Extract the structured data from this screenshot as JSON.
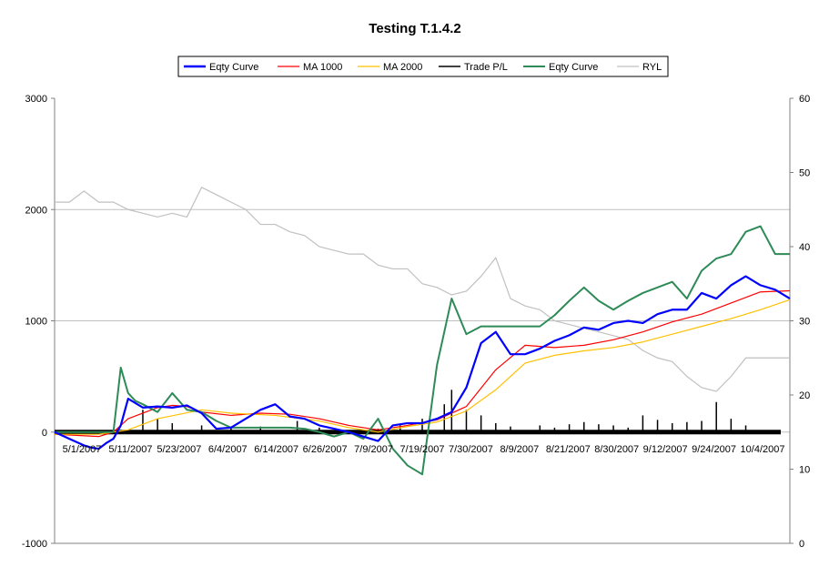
{
  "chart_data": {
    "type": "line",
    "title": "Testing T.1.4.2",
    "y_left": {
      "range": [
        -1000,
        3000
      ],
      "ticks": [
        "-1000",
        "0",
        "1000",
        "2000",
        "3000"
      ]
    },
    "y_right": {
      "range": [
        0,
        60
      ],
      "ticks": [
        "0",
        "10",
        "20",
        "30",
        "40",
        "50",
        "60"
      ]
    },
    "x_tick_labels": [
      "5/1/2007",
      "5/11/2007",
      "5/23/2007",
      "6/4/2007",
      "6/14/2007",
      "6/26/2007",
      "7/9/2007",
      "7/19/2007",
      "7/30/2007",
      "8/9/2007",
      "8/21/2007",
      "8/30/2007",
      "9/12/2007",
      "9/24/2007",
      "10/4/2007"
    ],
    "grid": "horizontal",
    "legend_position": "top",
    "legend": [
      "Eqty Curve",
      "MA 1000",
      "MA 2000",
      "Trade P/L",
      "Eqty Curve",
      "RYL"
    ],
    "series": [
      {
        "name": "Eqty Curve",
        "axis": "left",
        "color": "#0000ff",
        "x": [
          0,
          2,
          4,
          5,
          6,
          7,
          8,
          9,
          10,
          12,
          14,
          16,
          18,
          20,
          22,
          24,
          26,
          28,
          30,
          32,
          34,
          36,
          38,
          40,
          42,
          44,
          46,
          48,
          50,
          52,
          54,
          56,
          58,
          60,
          62,
          64,
          66,
          68,
          70,
          72,
          74,
          76,
          78,
          80,
          82,
          84,
          86,
          88,
          90,
          92,
          94,
          96,
          98,
          100
        ],
        "values": [
          0,
          -60,
          -120,
          -140,
          -150,
          -100,
          -60,
          60,
          300,
          220,
          230,
          220,
          240,
          170,
          30,
          40,
          120,
          200,
          250,
          140,
          120,
          60,
          30,
          0,
          -40,
          -80,
          60,
          80,
          80,
          120,
          180,
          400,
          800,
          900,
          700,
          700,
          750,
          820,
          870,
          940,
          920,
          980,
          1000,
          980,
          1060,
          1100,
          1100,
          1250,
          1200,
          1320,
          1400,
          1320,
          1280,
          1200
        ]
      },
      {
        "name": "MA 1000",
        "axis": "left",
        "color": "#ff0000",
        "x": [
          0,
          6,
          8,
          10,
          14,
          16,
          18,
          20,
          24,
          28,
          32,
          36,
          40,
          44,
          48,
          52,
          56,
          60,
          64,
          68,
          72,
          76,
          80,
          84,
          88,
          92,
          96,
          100
        ],
        "values": [
          -20,
          -40,
          0,
          120,
          220,
          240,
          230,
          180,
          150,
          170,
          160,
          120,
          60,
          20,
          60,
          110,
          230,
          560,
          780,
          760,
          780,
          830,
          900,
          990,
          1060,
          1160,
          1260,
          1270
        ]
      },
      {
        "name": "MA 2000",
        "axis": "left",
        "color": "#ffc000",
        "x": [
          0,
          6,
          10,
          14,
          20,
          24,
          30,
          36,
          40,
          44,
          48,
          52,
          56,
          60,
          64,
          68,
          72,
          76,
          80,
          84,
          88,
          92,
          96,
          100
        ],
        "values": [
          -20,
          -20,
          20,
          120,
          200,
          170,
          150,
          100,
          40,
          0,
          50,
          90,
          190,
          380,
          620,
          690,
          730,
          760,
          810,
          880,
          950,
          1020,
          1100,
          1190
        ]
      },
      {
        "name": "Eqty Curve",
        "axis": "left",
        "color": "#2e8b57",
        "x": [
          0,
          2,
          4,
          6,
          8,
          9,
          10,
          11,
          12,
          14,
          16,
          18,
          20,
          22,
          24,
          26,
          28,
          30,
          32,
          34,
          36,
          38,
          40,
          42,
          44,
          46,
          48,
          50,
          52,
          54,
          56,
          58,
          60,
          62,
          64,
          66,
          68,
          70,
          72,
          74,
          76,
          78,
          80,
          82,
          84,
          86,
          88,
          90,
          92,
          94,
          96,
          98,
          100
        ],
        "values": [
          0,
          0,
          0,
          0,
          0,
          580,
          350,
          280,
          250,
          180,
          350,
          200,
          180,
          100,
          40,
          40,
          40,
          40,
          40,
          30,
          0,
          -40,
          0,
          -60,
          120,
          -150,
          -300,
          -380,
          600,
          1200,
          880,
          950,
          950,
          950,
          950,
          950,
          1050,
          1180,
          1300,
          1180,
          1100,
          1180,
          1250,
          1300,
          1350,
          1200,
          1450,
          1560,
          1600,
          1800,
          1850,
          1600,
          1600
        ]
      },
      {
        "name": "Trade P/L",
        "axis": "left",
        "color": "#000000",
        "x": [
          12,
          14,
          16,
          20,
          24,
          28,
          33,
          36,
          44,
          47,
          50,
          53,
          54,
          56,
          58,
          60,
          62,
          66,
          68,
          70,
          72,
          74,
          76,
          78,
          80,
          82,
          84,
          86,
          88,
          90,
          92,
          94
        ],
        "values": [
          200,
          120,
          80,
          60,
          40,
          50,
          100,
          40,
          30,
          60,
          120,
          250,
          380,
          200,
          150,
          80,
          50,
          60,
          40,
          70,
          90,
          70,
          60,
          40,
          150,
          110,
          80,
          90,
          100,
          270,
          120,
          60
        ]
      },
      {
        "name": "RYL",
        "axis": "right",
        "color": "#c0c0c0",
        "x": [
          0,
          2,
          4,
          6,
          8,
          10,
          12,
          14,
          16,
          18,
          20,
          22,
          24,
          26,
          28,
          30,
          32,
          34,
          36,
          38,
          40,
          42,
          44,
          46,
          48,
          50,
          52,
          54,
          56,
          58,
          60,
          62,
          64,
          66,
          68,
          70,
          72,
          74,
          76,
          78,
          80,
          82,
          84,
          86,
          88,
          90,
          92,
          94,
          96,
          98,
          100
        ],
        "values": [
          46,
          46,
          47.5,
          46,
          46,
          45,
          44.5,
          44,
          44.5,
          44,
          48,
          47,
          46,
          45,
          43,
          43,
          42,
          41.5,
          40,
          39.5,
          39,
          39,
          37.5,
          37,
          37,
          35,
          34.5,
          33.5,
          34,
          36,
          38.5,
          33,
          32,
          31.5,
          30,
          29.5,
          29,
          28.5,
          28,
          27.5,
          26,
          25,
          24.5,
          22.5,
          21,
          20.5,
          22.5,
          25,
          25,
          25,
          25
        ]
      }
    ]
  }
}
